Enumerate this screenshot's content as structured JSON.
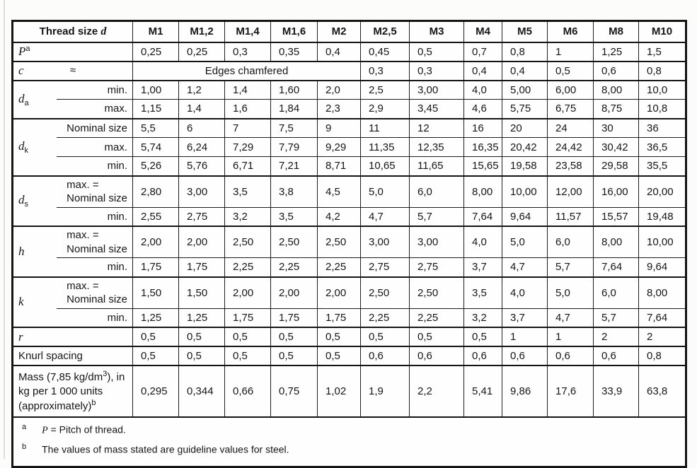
{
  "table": {
    "header": {
      "label": "Thread size",
      "symbol": "d"
    },
    "columns": [
      "M1",
      "M1,2",
      "M1,4",
      "M1,6",
      "M2",
      "M2,5",
      "M3",
      "M4",
      "M5",
      "M6",
      "M8",
      "M10"
    ],
    "body": [
      {
        "kind": "span2",
        "symbol": "P",
        "sup": "a",
        "values": [
          "0,25",
          "0,25",
          "0,3",
          "0,35",
          "0,4",
          "0,45",
          "0,5",
          "0,7",
          "0,8",
          "1",
          "1,25",
          "1,5"
        ]
      },
      {
        "kind": "approx",
        "symbol": "c",
        "approx": "≈",
        "span_label": "Edges chamfered",
        "span": 5,
        "values": [
          "0,3",
          "0,3",
          "0,4",
          "0,4",
          "0,5",
          "0,6",
          "0,8"
        ]
      },
      {
        "kind": "group",
        "symbol": "d",
        "sub": "a",
        "subrows": [
          {
            "label": "min.",
            "values": [
              "1,00",
              "1,2",
              "1,4",
              "1,60",
              "2,0",
              "2,5",
              "3,00",
              "4,0",
              "5,00",
              "6,00",
              "8,00",
              "10,0"
            ]
          },
          {
            "label": "max.",
            "values": [
              "1,15",
              "1,4",
              "1,6",
              "1,84",
              "2,3",
              "2,9",
              "3,45",
              "4,6",
              "5,75",
              "6,75",
              "8,75",
              "10,8"
            ]
          }
        ]
      },
      {
        "kind": "group",
        "symbol": "d",
        "sub": "k",
        "subrows": [
          {
            "label": "Nominal size",
            "values": [
              "5,5",
              "6",
              "7",
              "7,5",
              "9",
              "11",
              "12",
              "16",
              "20",
              "24",
              "30",
              "36"
            ]
          },
          {
            "label": "max.",
            "values": [
              "5,74",
              "6,24",
              "7,29",
              "7,79",
              "9,29",
              "11,35",
              "12,35",
              "16,35",
              "20,42",
              "24,42",
              "30,42",
              "36,5"
            ]
          },
          {
            "label": "min.",
            "values": [
              "5,26",
              "5,76",
              "6,71",
              "7,21",
              "8,71",
              "10,65",
              "11,65",
              "15,65",
              "19,58",
              "23,58",
              "29,58",
              "35,5"
            ]
          }
        ]
      },
      {
        "kind": "group",
        "symbol": "d",
        "sub": "s",
        "subrows": [
          {
            "label_lines": [
              "max. =",
              "Nominal size"
            ],
            "values": [
              "2,80",
              "3,00",
              "3,5",
              "3,8",
              "4,5",
              "5,0",
              "6,0",
              "8,00",
              "10,00",
              "12,00",
              "16,00",
              "20,00"
            ]
          },
          {
            "label": "min.",
            "values": [
              "2,55",
              "2,75",
              "3,2",
              "3,5",
              "4,2",
              "4,7",
              "5,7",
              "7,64",
              "9,64",
              "11,57",
              "15,57",
              "19,48"
            ]
          }
        ]
      },
      {
        "kind": "group",
        "symbol": "h",
        "sub": "",
        "subrows": [
          {
            "label_lines": [
              "max. =",
              "Nominal size"
            ],
            "values": [
              "2,00",
              "2,00",
              "2,50",
              "2,50",
              "2,50",
              "3,00",
              "3,00",
              "4,0",
              "5,0",
              "6,0",
              "8,00",
              "10,00"
            ]
          },
          {
            "label": "min.",
            "values": [
              "1,75",
              "1,75",
              "2,25",
              "2,25",
              "2,25",
              "2,75",
              "2,75",
              "3,7",
              "4,7",
              "5,7",
              "7,64",
              "9,64"
            ]
          }
        ]
      },
      {
        "kind": "group",
        "symbol": "k",
        "sub": "",
        "subrows": [
          {
            "label_lines": [
              "max. =",
              "Nominal size"
            ],
            "values": [
              "1,50",
              "1,50",
              "2,00",
              "2,00",
              "2,00",
              "2,50",
              "2,50",
              "3,5",
              "4,0",
              "5,0",
              "6,0",
              "8,00"
            ]
          },
          {
            "label": "min.",
            "values": [
              "1,25",
              "1,25",
              "1,75",
              "1,75",
              "1,75",
              "2,25",
              "2,25",
              "3,2",
              "3,7",
              "4,7",
              "5,7",
              "7,64"
            ]
          }
        ]
      },
      {
        "kind": "span2",
        "symbol": "r",
        "sup": "",
        "values": [
          "0,5",
          "0,5",
          "0,5",
          "0,5",
          "0,5",
          "0,5",
          "0,5",
          "0,5",
          "1",
          "1",
          "2",
          "2"
        ]
      },
      {
        "kind": "plain",
        "label": "Knurl spacing",
        "values": [
          "0,5",
          "0,5",
          "0,5",
          "0,5",
          "0,5",
          "0,6",
          "0,6",
          "0,6",
          "0,6",
          "0,6",
          "0,6",
          "0,8"
        ]
      },
      {
        "kind": "mass",
        "label_parts": {
          "p1": "Mass (7,85 kg/dm",
          "sup1": "3",
          "p2": "), in kg per 1 000 units (approximately)",
          "sup2": "b"
        },
        "values": [
          "0,295",
          "0,344",
          "0,66",
          "0,75",
          "1,02",
          "1,9",
          "2,2",
          "5,41",
          "9,86",
          "17,6",
          "33,9",
          "63,8"
        ]
      }
    ]
  },
  "footnotes": [
    {
      "marker": "a",
      "symbol": "P",
      "text": "= Pitch of thread."
    },
    {
      "marker": "b",
      "symbol": "",
      "text": "The values of mass stated are guideline values for steel."
    }
  ]
}
